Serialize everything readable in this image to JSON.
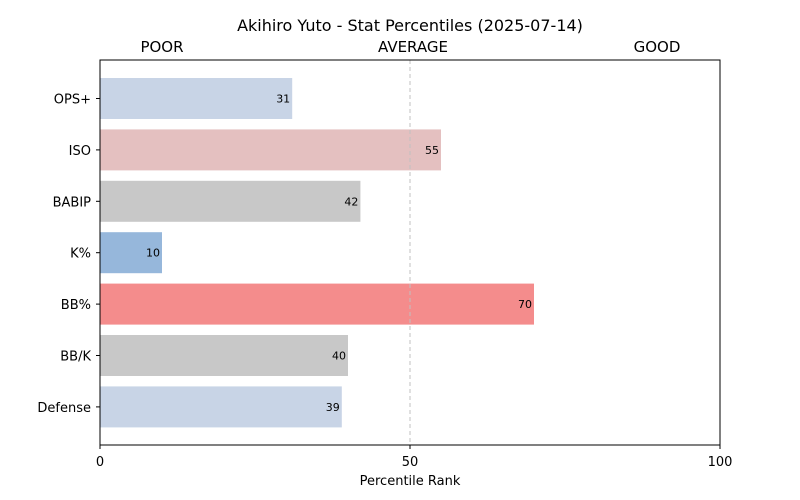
{
  "chart_data": {
    "type": "bar",
    "orientation": "horizontal",
    "title": "Akihiro Yuto - Stat Percentiles (2025-07-14)",
    "xlabel": "Percentile Rank",
    "ylabel": "",
    "xlim": [
      0,
      100
    ],
    "xticks": [
      "0",
      "50",
      "100"
    ],
    "header_labels": [
      "POOR",
      "AVERAGE",
      "GOOD"
    ],
    "reference_line": 50,
    "grid": false,
    "categories": [
      "OPS+",
      "ISO",
      "BABIP",
      "K%",
      "BB%",
      "BB/K",
      "Defense"
    ],
    "values": [
      31,
      55,
      42,
      10,
      70,
      40,
      39
    ],
    "colors": [
      "#c8d4e6",
      "#e4c0c0",
      "#c8c8c8",
      "#96b7db",
      "#f48c8c",
      "#c8c8c8",
      "#c8d4e6"
    ]
  }
}
